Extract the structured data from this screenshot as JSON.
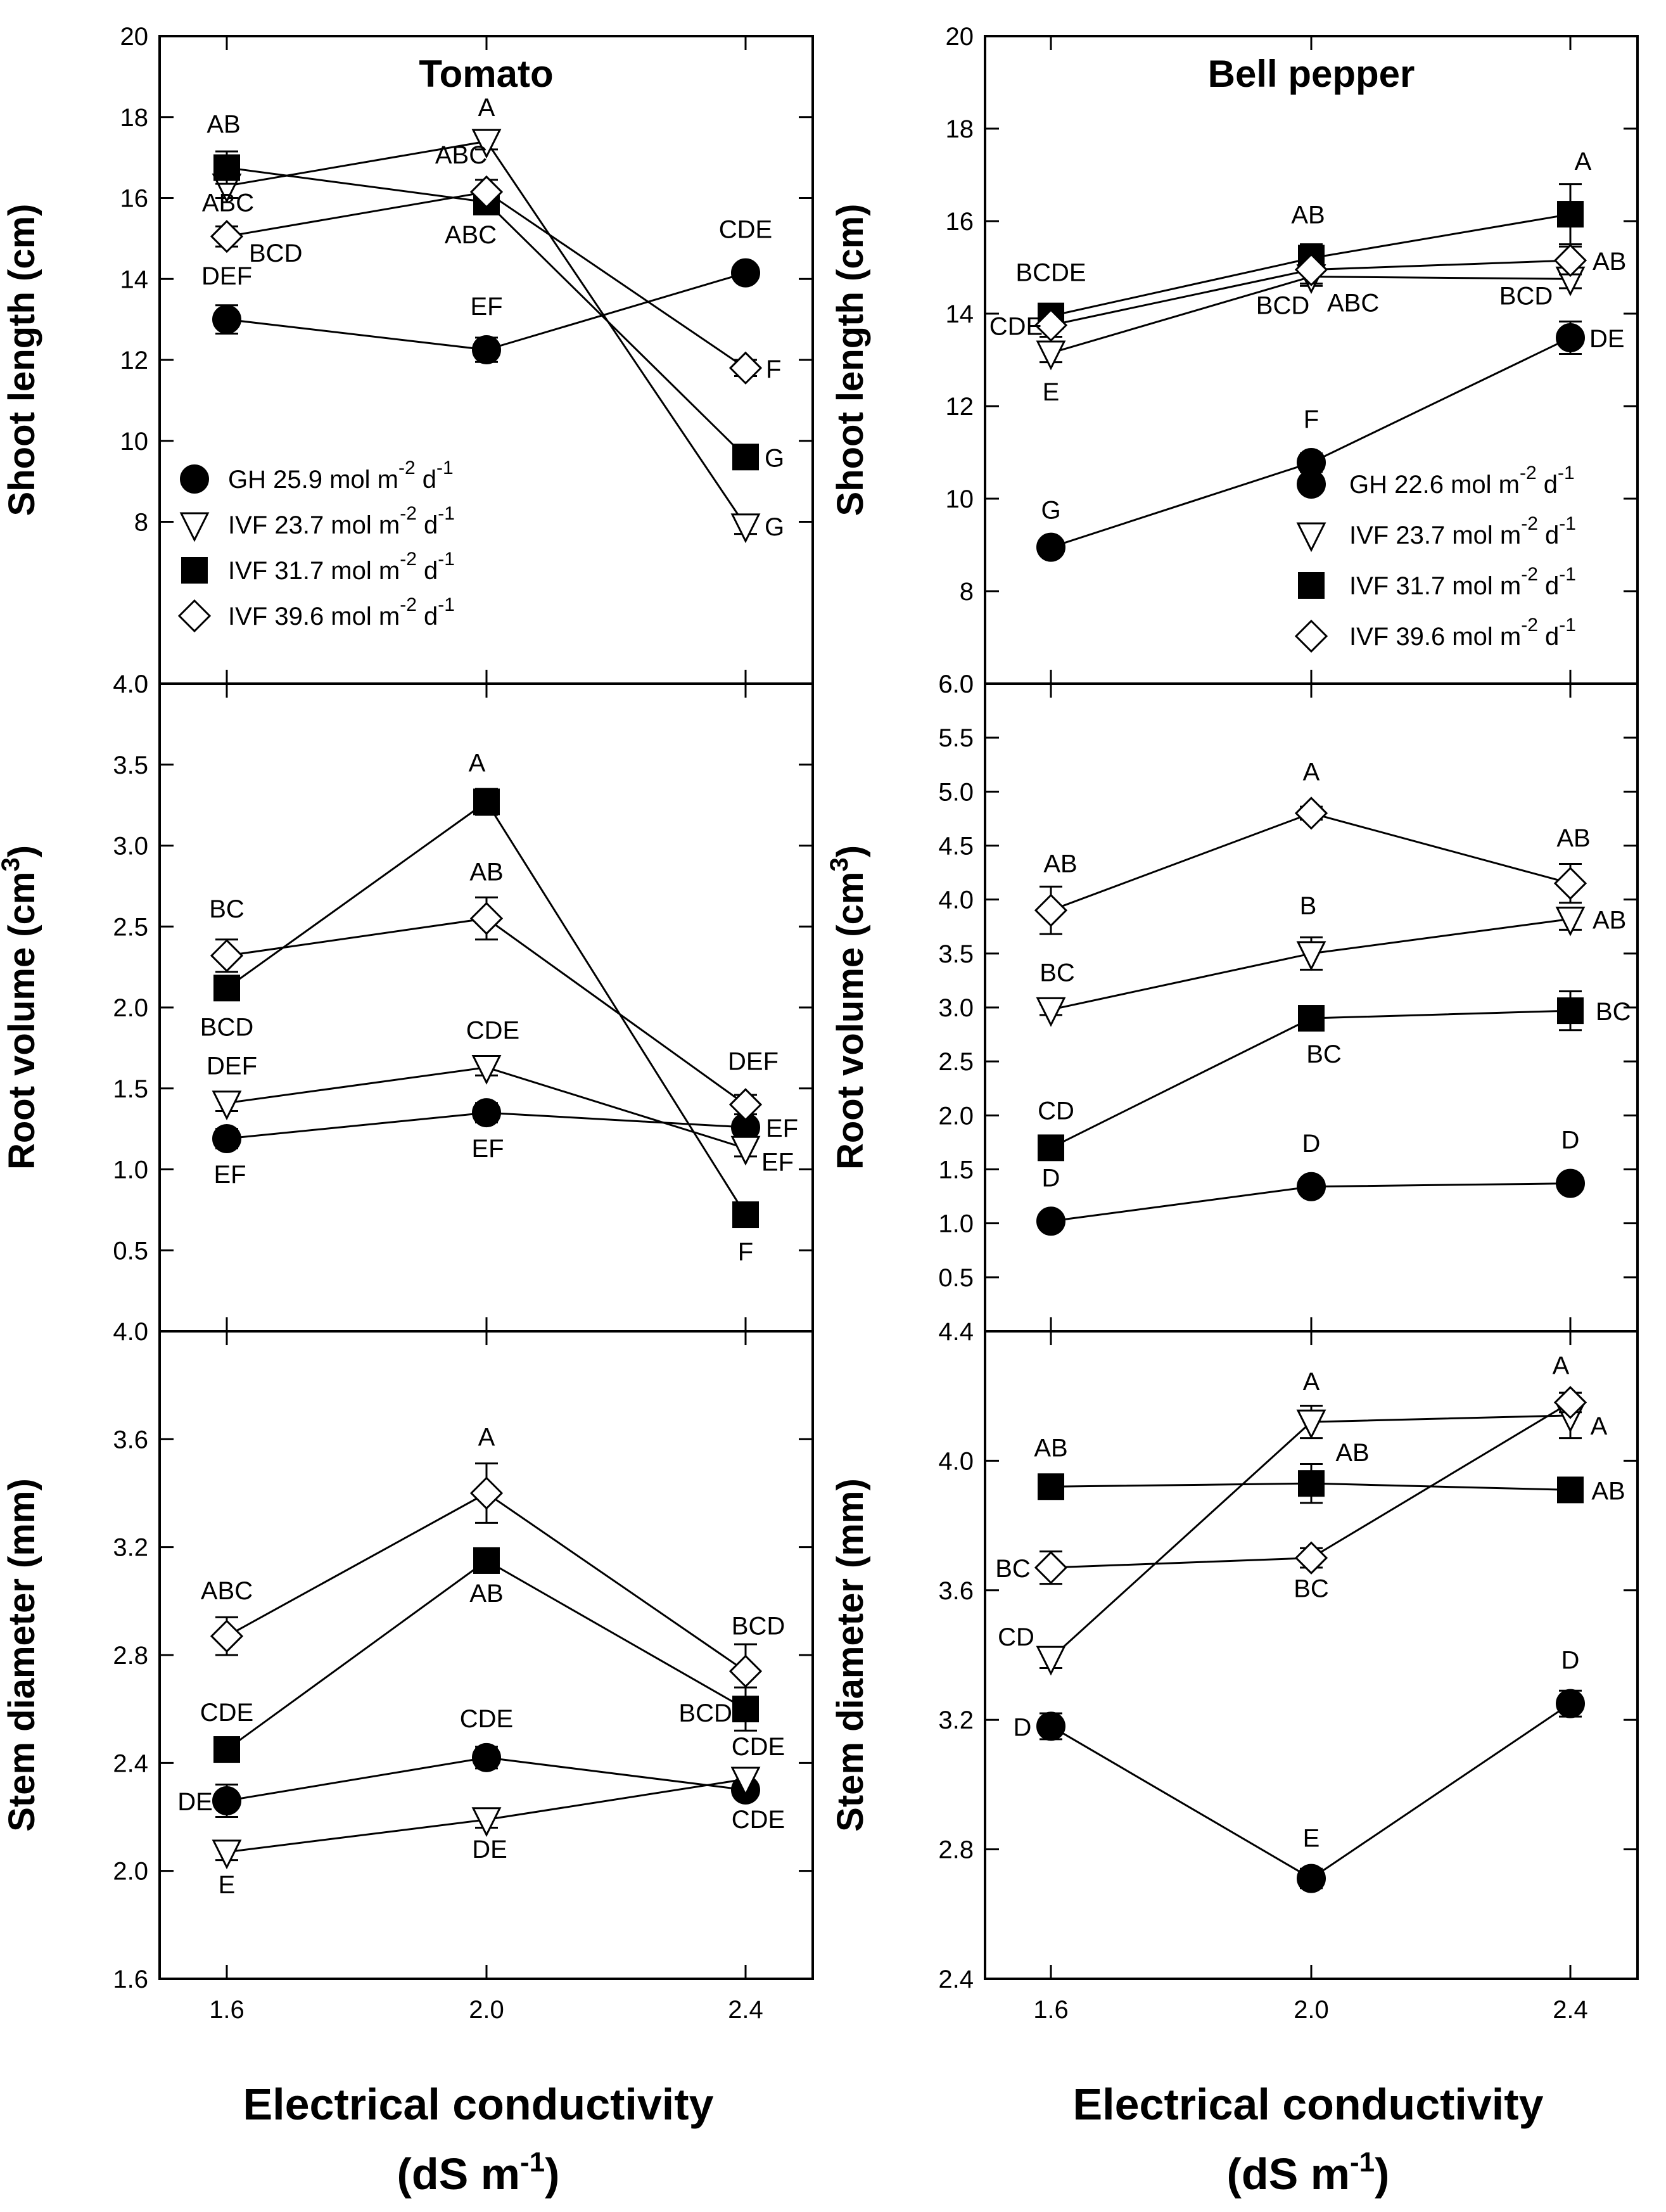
{
  "chart_data": {
    "type": "line",
    "x": [
      "1.6",
      "2.0",
      "2.4"
    ],
    "xlabel_line1": "Electrical conductivity",
    "xlabel_line2_pre": "(dS m",
    "xlabel_line2_sup": "-1",
    "xlabel_line2_post": ")",
    "panels": [
      {
        "key": "tomato_shoot",
        "column": 0,
        "row": 0,
        "title": "Tomato",
        "ylabel": "Shoot length (cm)",
        "ylim": [
          4,
          20
        ],
        "yticks": [
          "4.0",
          "8",
          "10",
          "12",
          "14",
          "16",
          "18",
          "20"
        ],
        "ytick_values": [
          4,
          8,
          10,
          12,
          14,
          16,
          18,
          20
        ],
        "legend": [
          {
            "marker": "circle",
            "label": "GH 25.9  mol m",
            "sup1": "-2",
            "mid": " d",
            "sup2": "-1"
          },
          {
            "marker": "tri",
            "label": "IVF 23.7 mol m",
            "sup1": "-2",
            "mid": " d",
            "sup2": "-1"
          },
          {
            "marker": "square",
            "label": "IVF 31.7 mol m",
            "sup1": "-2",
            "mid": " d",
            "sup2": "-1"
          },
          {
            "marker": "diamond",
            "label": "IVF 39.6 mol m",
            "sup1": "-2",
            "mid": " d",
            "sup2": "-1"
          }
        ],
        "series": [
          {
            "name": "GH",
            "marker": "circle",
            "values": [
              13.0,
              12.25,
              14.15
            ],
            "err": [
              0.35,
              0.3,
              0.2
            ],
            "labels": [
              "DEF",
              "EF",
              "CDE"
            ]
          },
          {
            "name": "IVF 23.7",
            "marker": "tri",
            "values": [
              16.3,
              17.4,
              7.9
            ],
            "err": [
              0.3,
              0.2,
              0.2
            ],
            "labels": [
              "ABC",
              "A",
              "G"
            ]
          },
          {
            "name": "IVF 31.7",
            "marker": "square",
            "values": [
              16.75,
              15.9,
              9.6
            ],
            "err": [
              0.4,
              0.3,
              0.2
            ],
            "labels": [
              "AB",
              "ABC",
              "G"
            ]
          },
          {
            "name": "IVF 39.6",
            "marker": "diamond",
            "values": [
              15.05,
              16.15,
              11.8
            ],
            "err": [
              0.25,
              0.3,
              0.2
            ],
            "labels": [
              "BCD",
              "ABC",
              "F"
            ]
          }
        ]
      },
      {
        "key": "tomato_root",
        "column": 0,
        "row": 1,
        "title": "",
        "ylabel": "Root volume (cm",
        "ylabel_sup": "3",
        "ylabel_post": ")",
        "ylim": [
          0,
          4
        ],
        "yticks": [
          "0.5",
          "1.0",
          "1.5",
          "2.0",
          "2.5",
          "3.0",
          "3.5",
          "4.0"
        ],
        "ytick_values": [
          0.5,
          1.0,
          1.5,
          2.0,
          2.5,
          3.0,
          3.5,
          4.0
        ],
        "series": [
          {
            "name": "GH",
            "marker": "circle",
            "values": [
              1.19,
              1.35,
              1.26
            ],
            "err": [
              0.06,
              0.06,
              0.05
            ],
            "labels": [
              "EF",
              "EF",
              "EF"
            ]
          },
          {
            "name": "IVF 23.7",
            "marker": "tri",
            "values": [
              1.41,
              1.63,
              1.13
            ],
            "err": [
              0.05,
              0.05,
              0.05
            ],
            "labels": [
              "DEF",
              "CDE",
              "EF"
            ]
          },
          {
            "name": "IVF 31.7",
            "marker": "square",
            "values": [
              2.12,
              3.27,
              0.72
            ],
            "err": [
              0.07,
              0.08,
              0.06
            ],
            "labels": [
              "BCD",
              "A",
              "F"
            ]
          },
          {
            "name": "IVF 39.6",
            "marker": "diamond",
            "values": [
              2.32,
              2.55,
              1.4
            ],
            "err": [
              0.1,
              0.13,
              0.06
            ],
            "labels": [
              "BC",
              "AB",
              "DEF"
            ]
          }
        ]
      },
      {
        "key": "tomato_stem",
        "column": 0,
        "row": 2,
        "title": "",
        "ylabel": "Stem diameter (mm)",
        "ylim": [
          1.6,
          4.0
        ],
        "yticks": [
          "1.6",
          "2.0",
          "2.4",
          "2.8",
          "3.2",
          "3.6",
          "4.0"
        ],
        "ytick_values": [
          1.6,
          2.0,
          2.4,
          2.8,
          3.2,
          3.6,
          4.0
        ],
        "series": [
          {
            "name": "GH",
            "marker": "circle",
            "values": [
              2.26,
              2.42,
              2.3
            ],
            "err": [
              0.06,
              0.04,
              0.03
            ],
            "labels": [
              "DE",
              "CDE",
              "CDE"
            ]
          },
          {
            "name": "IVF 23.7",
            "marker": "tri",
            "values": [
              2.07,
              2.19,
              2.34
            ],
            "err": [
              0.03,
              0.03,
              0.03
            ],
            "labels": [
              "E",
              "DE",
              "CDE"
            ]
          },
          {
            "name": "IVF 31.7",
            "marker": "square",
            "values": [
              2.45,
              3.15,
              2.6
            ],
            "err": [
              0.03,
              0.03,
              0.08
            ],
            "labels": [
              "CDE",
              "AB",
              "BCDE"
            ]
          },
          {
            "name": "IVF 39.6",
            "marker": "diamond",
            "values": [
              2.87,
              3.4,
              2.74
            ],
            "err": [
              0.07,
              0.11,
              0.1
            ],
            "labels": [
              "ABC",
              "A",
              "BCD"
            ]
          }
        ]
      },
      {
        "key": "pepper_shoot",
        "column": 1,
        "row": 0,
        "title": "Bell pepper",
        "ylabel": "Shoot length (cm)",
        "ylim": [
          6,
          20
        ],
        "yticks": [
          "6.0",
          "8",
          "10",
          "12",
          "14",
          "16",
          "18",
          "20"
        ],
        "ytick_values": [
          6,
          8,
          10,
          12,
          14,
          16,
          18,
          20
        ],
        "legend": [
          {
            "marker": "circle",
            "label": "GH 22.6 mol m",
            "sup1": "-2",
            "mid": " d",
            "sup2": "-1"
          },
          {
            "marker": "tri",
            "label": "IVF 23.7 mol m",
            "sup1": "-2",
            "mid": " d",
            "sup2": "-1"
          },
          {
            "marker": "square",
            "label": "IVF 31.7 mol m",
            "sup1": "-2",
            "mid": " d",
            "sup2": "-1"
          },
          {
            "marker": "diamond",
            "label": "IVF 39.6 mol m",
            "sup1": "-2",
            "mid": " d",
            "sup2": "-1"
          }
        ],
        "series": [
          {
            "name": "GH",
            "marker": "circle",
            "values": [
              8.95,
              10.78,
              13.48
            ],
            "err": [
              0.15,
              0.2,
              0.35
            ],
            "labels": [
              "G",
              "F",
              "DE"
            ]
          },
          {
            "name": "IVF 23.7",
            "marker": "tri",
            "values": [
              13.15,
              14.8,
              14.75
            ],
            "err": [
              0.2,
              0.2,
              0.2
            ],
            "labels": [
              "E",
              "ABC",
              "BCD"
            ]
          },
          {
            "name": "IVF 31.7",
            "marker": "square",
            "values": [
              13.95,
              15.2,
              16.15
            ],
            "err": [
              0.2,
              0.3,
              0.65
            ],
            "labels": [
              "BCDE",
              "AB",
              "A"
            ]
          },
          {
            "name": "IVF 39.6",
            "marker": "diamond",
            "values": [
              13.75,
              14.95,
              15.15
            ],
            "err": [
              0.25,
              0.3,
              0.3
            ],
            "labels": [
              "CDE",
              "BCD",
              "AB"
            ]
          }
        ]
      },
      {
        "key": "pepper_root",
        "column": 1,
        "row": 1,
        "title": "",
        "ylabel": "Root volume (cm",
        "ylabel_sup": "3",
        "ylabel_post": ")",
        "ylim": [
          0,
          6
        ],
        "yticks": [
          "0.5",
          "1.0",
          "1.5",
          "2.0",
          "2.5",
          "3.0",
          "3.5",
          "4.0",
          "4.5",
          "5.0",
          "5.5",
          "6.0"
        ],
        "ytick_values": [
          0.5,
          1.0,
          1.5,
          2.0,
          2.5,
          3.0,
          3.5,
          4.0,
          4.5,
          5.0,
          5.5,
          6.0
        ],
        "series": [
          {
            "name": "GH",
            "marker": "circle",
            "values": [
              1.02,
              1.34,
              1.37
            ],
            "err": [
              0.04,
              0.05,
              0.05
            ],
            "labels": [
              "D",
              "D",
              "D"
            ]
          },
          {
            "name": "IVF 23.7",
            "marker": "tri",
            "values": [
              2.98,
              3.5,
              3.82
            ],
            "err": [
              0.05,
              0.15,
              0.1
            ],
            "labels": [
              "BC",
              "B",
              "AB"
            ]
          },
          {
            "name": "IVF 31.7",
            "marker": "square",
            "values": [
              1.7,
              2.9,
              2.97
            ],
            "err": [
              0.06,
              0.1,
              0.18
            ],
            "labels": [
              "CD",
              "BC",
              "BC"
            ]
          },
          {
            "name": "IVF 39.6",
            "marker": "diamond",
            "values": [
              3.9,
              4.8,
              4.15
            ],
            "err": [
              0.22,
              0.06,
              0.18
            ],
            "labels": [
              "AB",
              "A",
              "AB"
            ]
          }
        ]
      },
      {
        "key": "pepper_stem",
        "column": 1,
        "row": 2,
        "title": "",
        "ylabel": "Stem diameter (mm)",
        "ylim": [
          2.4,
          4.4
        ],
        "yticks": [
          "2.4",
          "2.8",
          "3.2",
          "3.6",
          "4.0",
          "4.4"
        ],
        "ytick_values": [
          2.4,
          2.8,
          3.2,
          3.6,
          4.0,
          4.4
        ],
        "series": [
          {
            "name": "GH",
            "marker": "circle",
            "values": [
              3.18,
              2.71,
              3.25
            ],
            "err": [
              0.04,
              0.03,
              0.04
            ],
            "labels": [
              "D",
              "E",
              "D"
            ]
          },
          {
            "name": "IVF 23.7",
            "marker": "tri",
            "values": [
              3.39,
              4.12,
              4.14
            ],
            "err": [
              0.03,
              0.05,
              0.07
            ],
            "labels": [
              "CD",
              "A",
              "A"
            ]
          },
          {
            "name": "IVF 31.7",
            "marker": "square",
            "values": [
              3.92,
              3.93,
              3.91
            ],
            "err": [
              0.03,
              0.06,
              0.03
            ],
            "labels": [
              "AB",
              "AB",
              "AB"
            ]
          },
          {
            "name": "IVF 39.6",
            "marker": "diamond",
            "values": [
              3.67,
              3.7,
              4.18
            ],
            "err": [
              0.05,
              0.03,
              0.03
            ],
            "labels": [
              "BC",
              "BC",
              "A"
            ]
          }
        ]
      }
    ]
  }
}
